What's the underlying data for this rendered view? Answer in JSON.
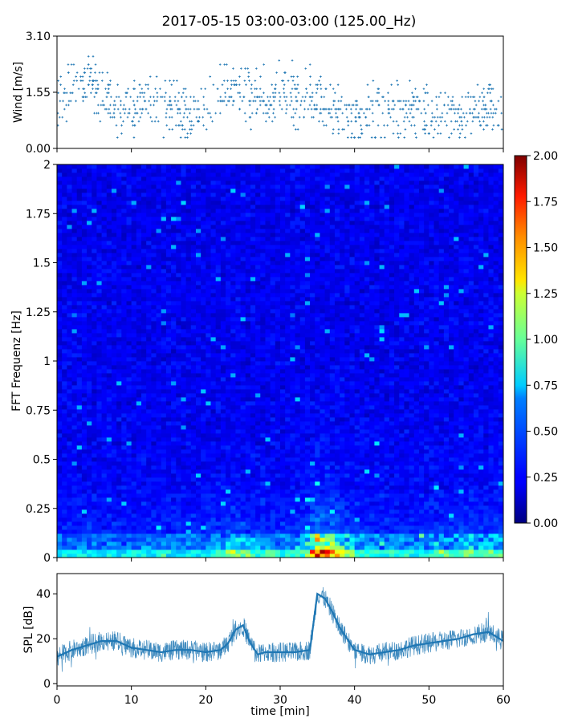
{
  "title": "2017-05-15 03:00-03:00 (125.00_Hz)",
  "chart_data": [
    {
      "type": "scatter",
      "panel": "wind",
      "ylabel": "Wind [m/s]",
      "xlim": [
        0,
        60
      ],
      "ylim": [
        0,
        3.1
      ],
      "yticks": [
        {
          "value": 0,
          "label": "0.00"
        },
        {
          "value": 1.55,
          "label": "1.55"
        },
        {
          "value": 3.1,
          "label": "3.10"
        }
      ],
      "color": "#1f77b4",
      "marker": "+",
      "profile": [
        {
          "t": 0,
          "mean": 1.3
        },
        {
          "t": 2,
          "mean": 1.7
        },
        {
          "t": 4,
          "mean": 1.9
        },
        {
          "t": 6,
          "mean": 1.5
        },
        {
          "t": 8,
          "mean": 1.0
        },
        {
          "t": 10,
          "mean": 1.1
        },
        {
          "t": 12,
          "mean": 1.3
        },
        {
          "t": 14,
          "mean": 1.1
        },
        {
          "t": 16,
          "mean": 1.0
        },
        {
          "t": 18,
          "mean": 0.9
        },
        {
          "t": 20,
          "mean": 1.1
        },
        {
          "t": 22,
          "mean": 1.5
        },
        {
          "t": 24,
          "mean": 1.7
        },
        {
          "t": 26,
          "mean": 1.4
        },
        {
          "t": 28,
          "mean": 1.4
        },
        {
          "t": 30,
          "mean": 1.5
        },
        {
          "t": 32,
          "mean": 1.5
        },
        {
          "t": 34,
          "mean": 1.4
        },
        {
          "t": 36,
          "mean": 1.2
        },
        {
          "t": 38,
          "mean": 0.9
        },
        {
          "t": 40,
          "mean": 0.9
        },
        {
          "t": 42,
          "mean": 1.0
        },
        {
          "t": 44,
          "mean": 1.0
        },
        {
          "t": 46,
          "mean": 1.1
        },
        {
          "t": 48,
          "mean": 1.0
        },
        {
          "t": 50,
          "mean": 0.9
        },
        {
          "t": 52,
          "mean": 0.9
        },
        {
          "t": 54,
          "mean": 1.0
        },
        {
          "t": 56,
          "mean": 1.0
        },
        {
          "t": 58,
          "mean": 1.1
        },
        {
          "t": 60,
          "mean": 0.9
        }
      ]
    },
    {
      "type": "heatmap",
      "panel": "spectrogram",
      "ylabel": "FFT Frequenz [Hz]",
      "xlim": [
        0,
        60
      ],
      "ylim": [
        0,
        2
      ],
      "yticks": [
        {
          "value": 0,
          "label": "0"
        },
        {
          "value": 0.25,
          "label": "0.25"
        },
        {
          "value": 0.5,
          "label": "0.5"
        },
        {
          "value": 0.75,
          "label": "0.75"
        },
        {
          "value": 1,
          "label": "1"
        },
        {
          "value": 1.25,
          "label": "1.25"
        },
        {
          "value": 1.5,
          "label": "1.5"
        },
        {
          "value": 1.75,
          "label": "1.75"
        },
        {
          "value": 2,
          "label": "2"
        }
      ],
      "colormap": "jet",
      "colorbar": {
        "range": [
          0,
          2
        ],
        "ticks": [
          "0.00",
          "0.25",
          "0.50",
          "0.75",
          "1.00",
          "1.25",
          "1.50",
          "1.75",
          "2.00"
        ]
      },
      "intensity_profile": [
        {
          "t": 0,
          "level": 0.25
        },
        {
          "t": 10,
          "level": 0.25
        },
        {
          "t": 20,
          "level": 0.25
        },
        {
          "t": 24,
          "level": 0.45
        },
        {
          "t": 26,
          "level": 0.35
        },
        {
          "t": 30,
          "level": 0.3
        },
        {
          "t": 33,
          "level": 0.35
        },
        {
          "t": 35,
          "level": 0.8
        },
        {
          "t": 37,
          "level": 0.7
        },
        {
          "t": 39,
          "level": 0.45
        },
        {
          "t": 42,
          "level": 0.3
        },
        {
          "t": 50,
          "level": 0.3
        },
        {
          "t": 56,
          "level": 0.4
        },
        {
          "t": 60,
          "level": 0.35
        }
      ]
    },
    {
      "type": "line",
      "panel": "spl",
      "ylabel": "SPL [dB]",
      "xlabel": "time [min]",
      "xlim": [
        0,
        60
      ],
      "ylim": [
        -1,
        49
      ],
      "xticks": [
        0,
        10,
        20,
        30,
        40,
        50,
        60
      ],
      "yticks": [
        0,
        20,
        40
      ],
      "color": "#1f77b4",
      "x": [
        0,
        2,
        4,
        6,
        8,
        10,
        12,
        14,
        16,
        18,
        20,
        22,
        23,
        24,
        25,
        26,
        27,
        28,
        30,
        32,
        34,
        35,
        36,
        37,
        38,
        40,
        42,
        44,
        46,
        48,
        50,
        52,
        54,
        56,
        58,
        60
      ],
      "y": [
        12,
        15,
        17,
        19,
        19,
        16,
        15,
        14,
        15,
        15,
        14,
        15,
        18,
        24,
        26,
        18,
        13,
        14,
        14,
        14,
        15,
        40,
        38,
        32,
        25,
        15,
        13,
        14,
        15,
        17,
        18,
        19,
        20,
        22,
        23,
        19
      ]
    }
  ]
}
